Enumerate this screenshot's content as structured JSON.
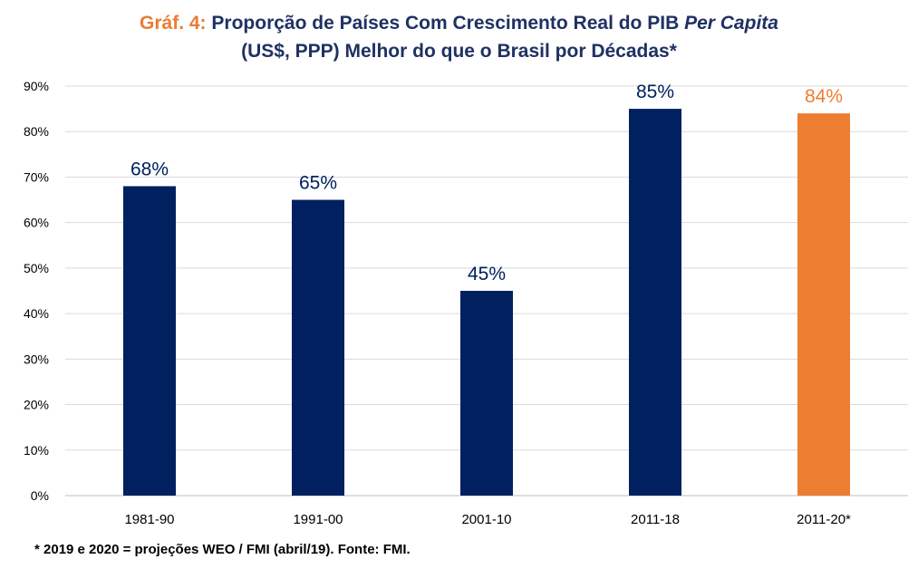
{
  "title": {
    "prefix": "Gráf. 4:",
    "line1_main": "Proporção de Países Com Crescimento Real do PIB",
    "line1_italic": "Per Capita",
    "line2": "(US$, PPP) Melhor do que o Brasil por Décadas*"
  },
  "footnote": "* 2019 e 2020 = projeções WEO / FMI (abril/19). Fonte: FMI.",
  "colors": {
    "primary": "#002060",
    "highlight": "#ed7d31",
    "title": "#1f3163",
    "grid": "#d9d9d9"
  },
  "chart_data": {
    "type": "bar",
    "title": "Gráf. 4: Proporção de Países Com Crescimento Real do PIB Per Capita (US$, PPP) Melhor do que o Brasil por Décadas*",
    "categories": [
      "1981-90",
      "1991-00",
      "2001-10",
      "2011-18",
      "2011-20*"
    ],
    "values": [
      68,
      65,
      45,
      85,
      84
    ],
    "data_labels": [
      "68%",
      "65%",
      "45%",
      "85%",
      "84%"
    ],
    "highlight_index": 4,
    "ylim": [
      0,
      90
    ],
    "yticks": [
      0,
      10,
      20,
      30,
      40,
      50,
      60,
      70,
      80,
      90
    ],
    "ytick_labels": [
      "0%",
      "10%",
      "20%",
      "30%",
      "40%",
      "50%",
      "60%",
      "70%",
      "80%",
      "90%"
    ],
    "xlabel": "",
    "ylabel": "",
    "grid": true
  }
}
